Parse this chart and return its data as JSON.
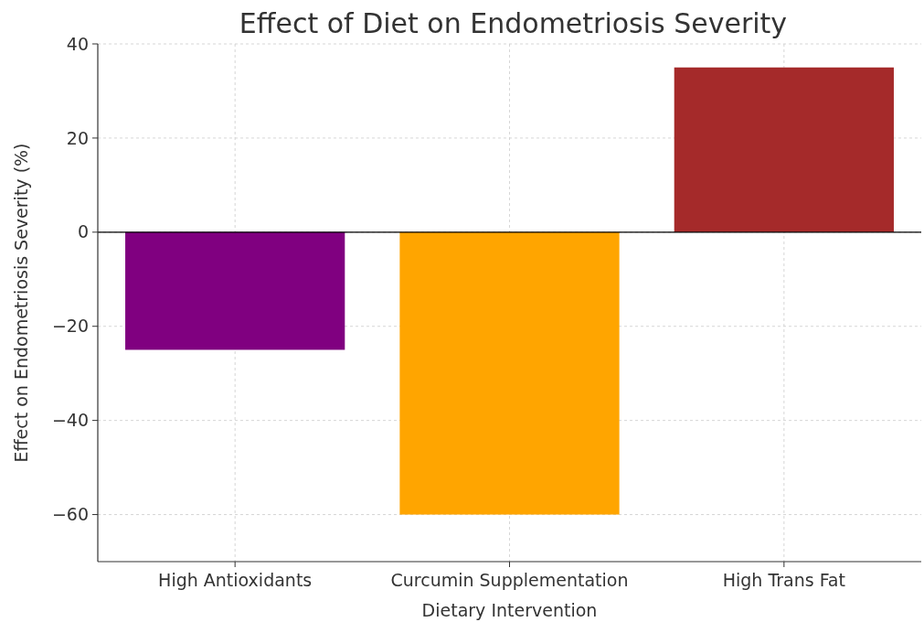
{
  "chart_data": {
    "type": "bar",
    "title": "Effect of Diet on Endometriosis Severity",
    "xlabel": "Dietary Intervention",
    "ylabel": "Effect on Endometriosis Severity (%)",
    "categories": [
      "High Antioxidants",
      "Curcumin Supplementation",
      "High Trans Fat"
    ],
    "values": [
      -25,
      -60,
      35
    ],
    "colors": [
      "#800080",
      "#ffa500",
      "#a52a2a"
    ],
    "ylim": [
      -70,
      40
    ],
    "yticks": [
      {
        "value": -60,
        "label": "−60"
      },
      {
        "value": -40,
        "label": "−40"
      },
      {
        "value": -20,
        "label": "−20"
      },
      0,
      20,
      40
    ],
    "grid": true,
    "ref_lines": [
      {
        "axis": "y",
        "value": 0,
        "color": "#000000"
      }
    ]
  }
}
